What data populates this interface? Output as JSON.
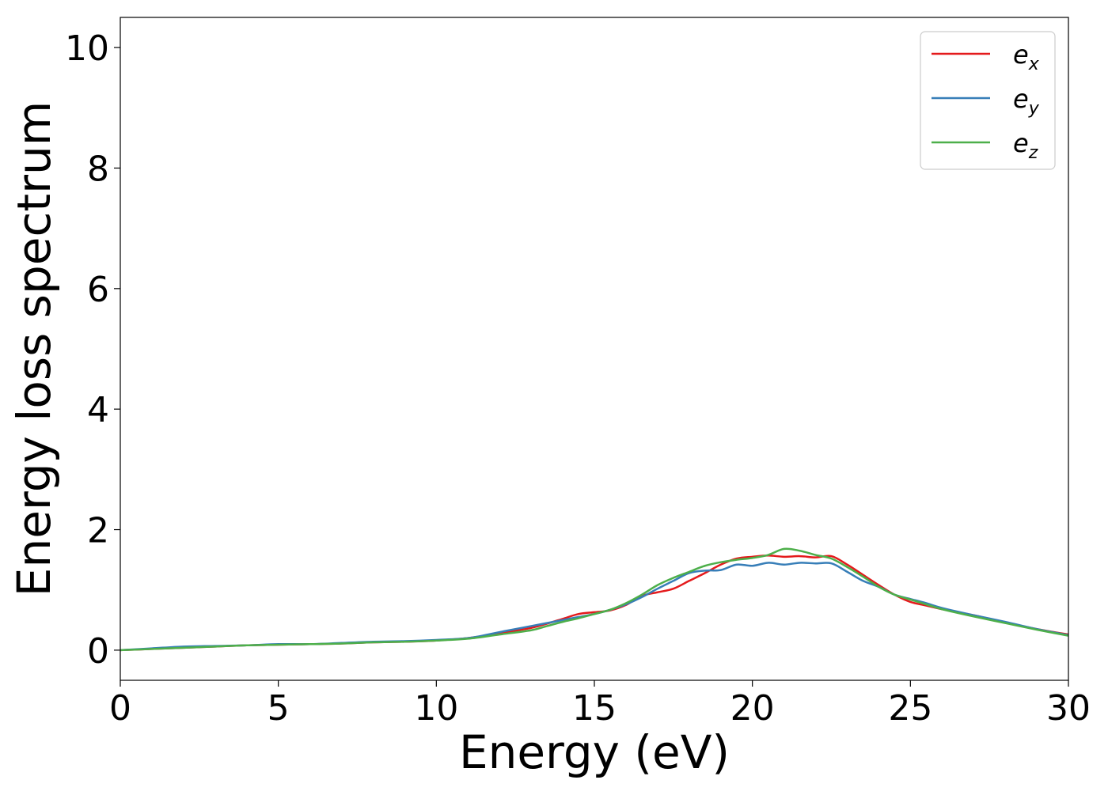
{
  "chart_data": {
    "type": "line",
    "xlabel": "Energy (eV)",
    "ylabel": "Energy loss spectrum",
    "xlim": [
      0,
      30
    ],
    "ylim": [
      -0.5,
      10.5
    ],
    "xticks": [
      0,
      5,
      10,
      15,
      20,
      25,
      30
    ],
    "yticks": [
      0,
      2,
      4,
      6,
      8,
      10
    ],
    "xtick_labels": [
      "0",
      "5",
      "10",
      "15",
      "20",
      "25",
      "30"
    ],
    "ytick_labels": [
      "0",
      "2",
      "4",
      "6",
      "8",
      "10"
    ],
    "grid": false,
    "legend_position": "top-right",
    "series": [
      {
        "name": "e_x",
        "label_main": "e",
        "label_sub": "x",
        "color": "#e41a1c",
        "x": [
          0,
          1,
          2,
          3,
          4,
          5,
          6,
          7,
          8,
          9,
          10,
          11,
          12,
          13,
          13.5,
          14,
          14.5,
          15,
          15.5,
          16,
          16.5,
          17,
          17.5,
          18,
          18.5,
          19,
          19.5,
          20,
          20.5,
          21,
          21.5,
          22,
          22.5,
          23,
          23.5,
          24,
          24.5,
          25,
          25.5,
          26,
          27,
          28,
          29,
          30
        ],
        "values": [
          0,
          0.02,
          0.04,
          0.06,
          0.08,
          0.09,
          0.1,
          0.11,
          0.13,
          0.14,
          0.16,
          0.2,
          0.28,
          0.37,
          0.44,
          0.52,
          0.6,
          0.63,
          0.66,
          0.75,
          0.9,
          0.96,
          1.02,
          1.15,
          1.28,
          1.42,
          1.52,
          1.55,
          1.57,
          1.55,
          1.56,
          1.54,
          1.56,
          1.42,
          1.25,
          1.08,
          0.92,
          0.8,
          0.74,
          0.68,
          0.58,
          0.46,
          0.35,
          0.26
        ]
      },
      {
        "name": "e_y",
        "label_main": "e",
        "label_sub": "y",
        "color": "#377eb8",
        "x": [
          0,
          1,
          2,
          3,
          4,
          5,
          6,
          7,
          8,
          9,
          10,
          11,
          12,
          13,
          13.5,
          14,
          14.5,
          15,
          15.5,
          16,
          16.5,
          17,
          17.5,
          18,
          18.5,
          19,
          19.5,
          20,
          20.5,
          21,
          21.5,
          22,
          22.5,
          23,
          23.5,
          24,
          24.5,
          25,
          25.5,
          26,
          27,
          28,
          29,
          30
        ],
        "values": [
          0,
          0.03,
          0.06,
          0.07,
          0.08,
          0.1,
          0.1,
          0.12,
          0.14,
          0.15,
          0.17,
          0.2,
          0.3,
          0.4,
          0.45,
          0.5,
          0.55,
          0.6,
          0.67,
          0.76,
          0.88,
          1.02,
          1.15,
          1.28,
          1.32,
          1.33,
          1.42,
          1.4,
          1.45,
          1.42,
          1.45,
          1.44,
          1.44,
          1.3,
          1.15,
          1.05,
          0.92,
          0.85,
          0.78,
          0.7,
          0.58,
          0.47,
          0.35,
          0.25
        ]
      },
      {
        "name": "e_z",
        "label_main": "e",
        "label_sub": "z",
        "color": "#4daf4a",
        "x": [
          0,
          1,
          2,
          3,
          4,
          5,
          6,
          7,
          8,
          9,
          10,
          11,
          12,
          13,
          13.5,
          14,
          14.5,
          15,
          15.5,
          16,
          16.5,
          17,
          17.5,
          18,
          18.5,
          19,
          19.5,
          20,
          20.5,
          21,
          21.5,
          22,
          22.5,
          23,
          23.5,
          24,
          24.5,
          25,
          25.5,
          26,
          27,
          28,
          29,
          30
        ],
        "values": [
          0,
          0.02,
          0.04,
          0.06,
          0.08,
          0.09,
          0.1,
          0.11,
          0.13,
          0.14,
          0.16,
          0.19,
          0.26,
          0.33,
          0.4,
          0.47,
          0.53,
          0.6,
          0.67,
          0.78,
          0.92,
          1.08,
          1.2,
          1.3,
          1.4,
          1.46,
          1.5,
          1.53,
          1.58,
          1.68,
          1.65,
          1.58,
          1.52,
          1.38,
          1.22,
          1.05,
          0.92,
          0.84,
          0.76,
          0.68,
          0.56,
          0.45,
          0.34,
          0.24
        ]
      }
    ]
  }
}
